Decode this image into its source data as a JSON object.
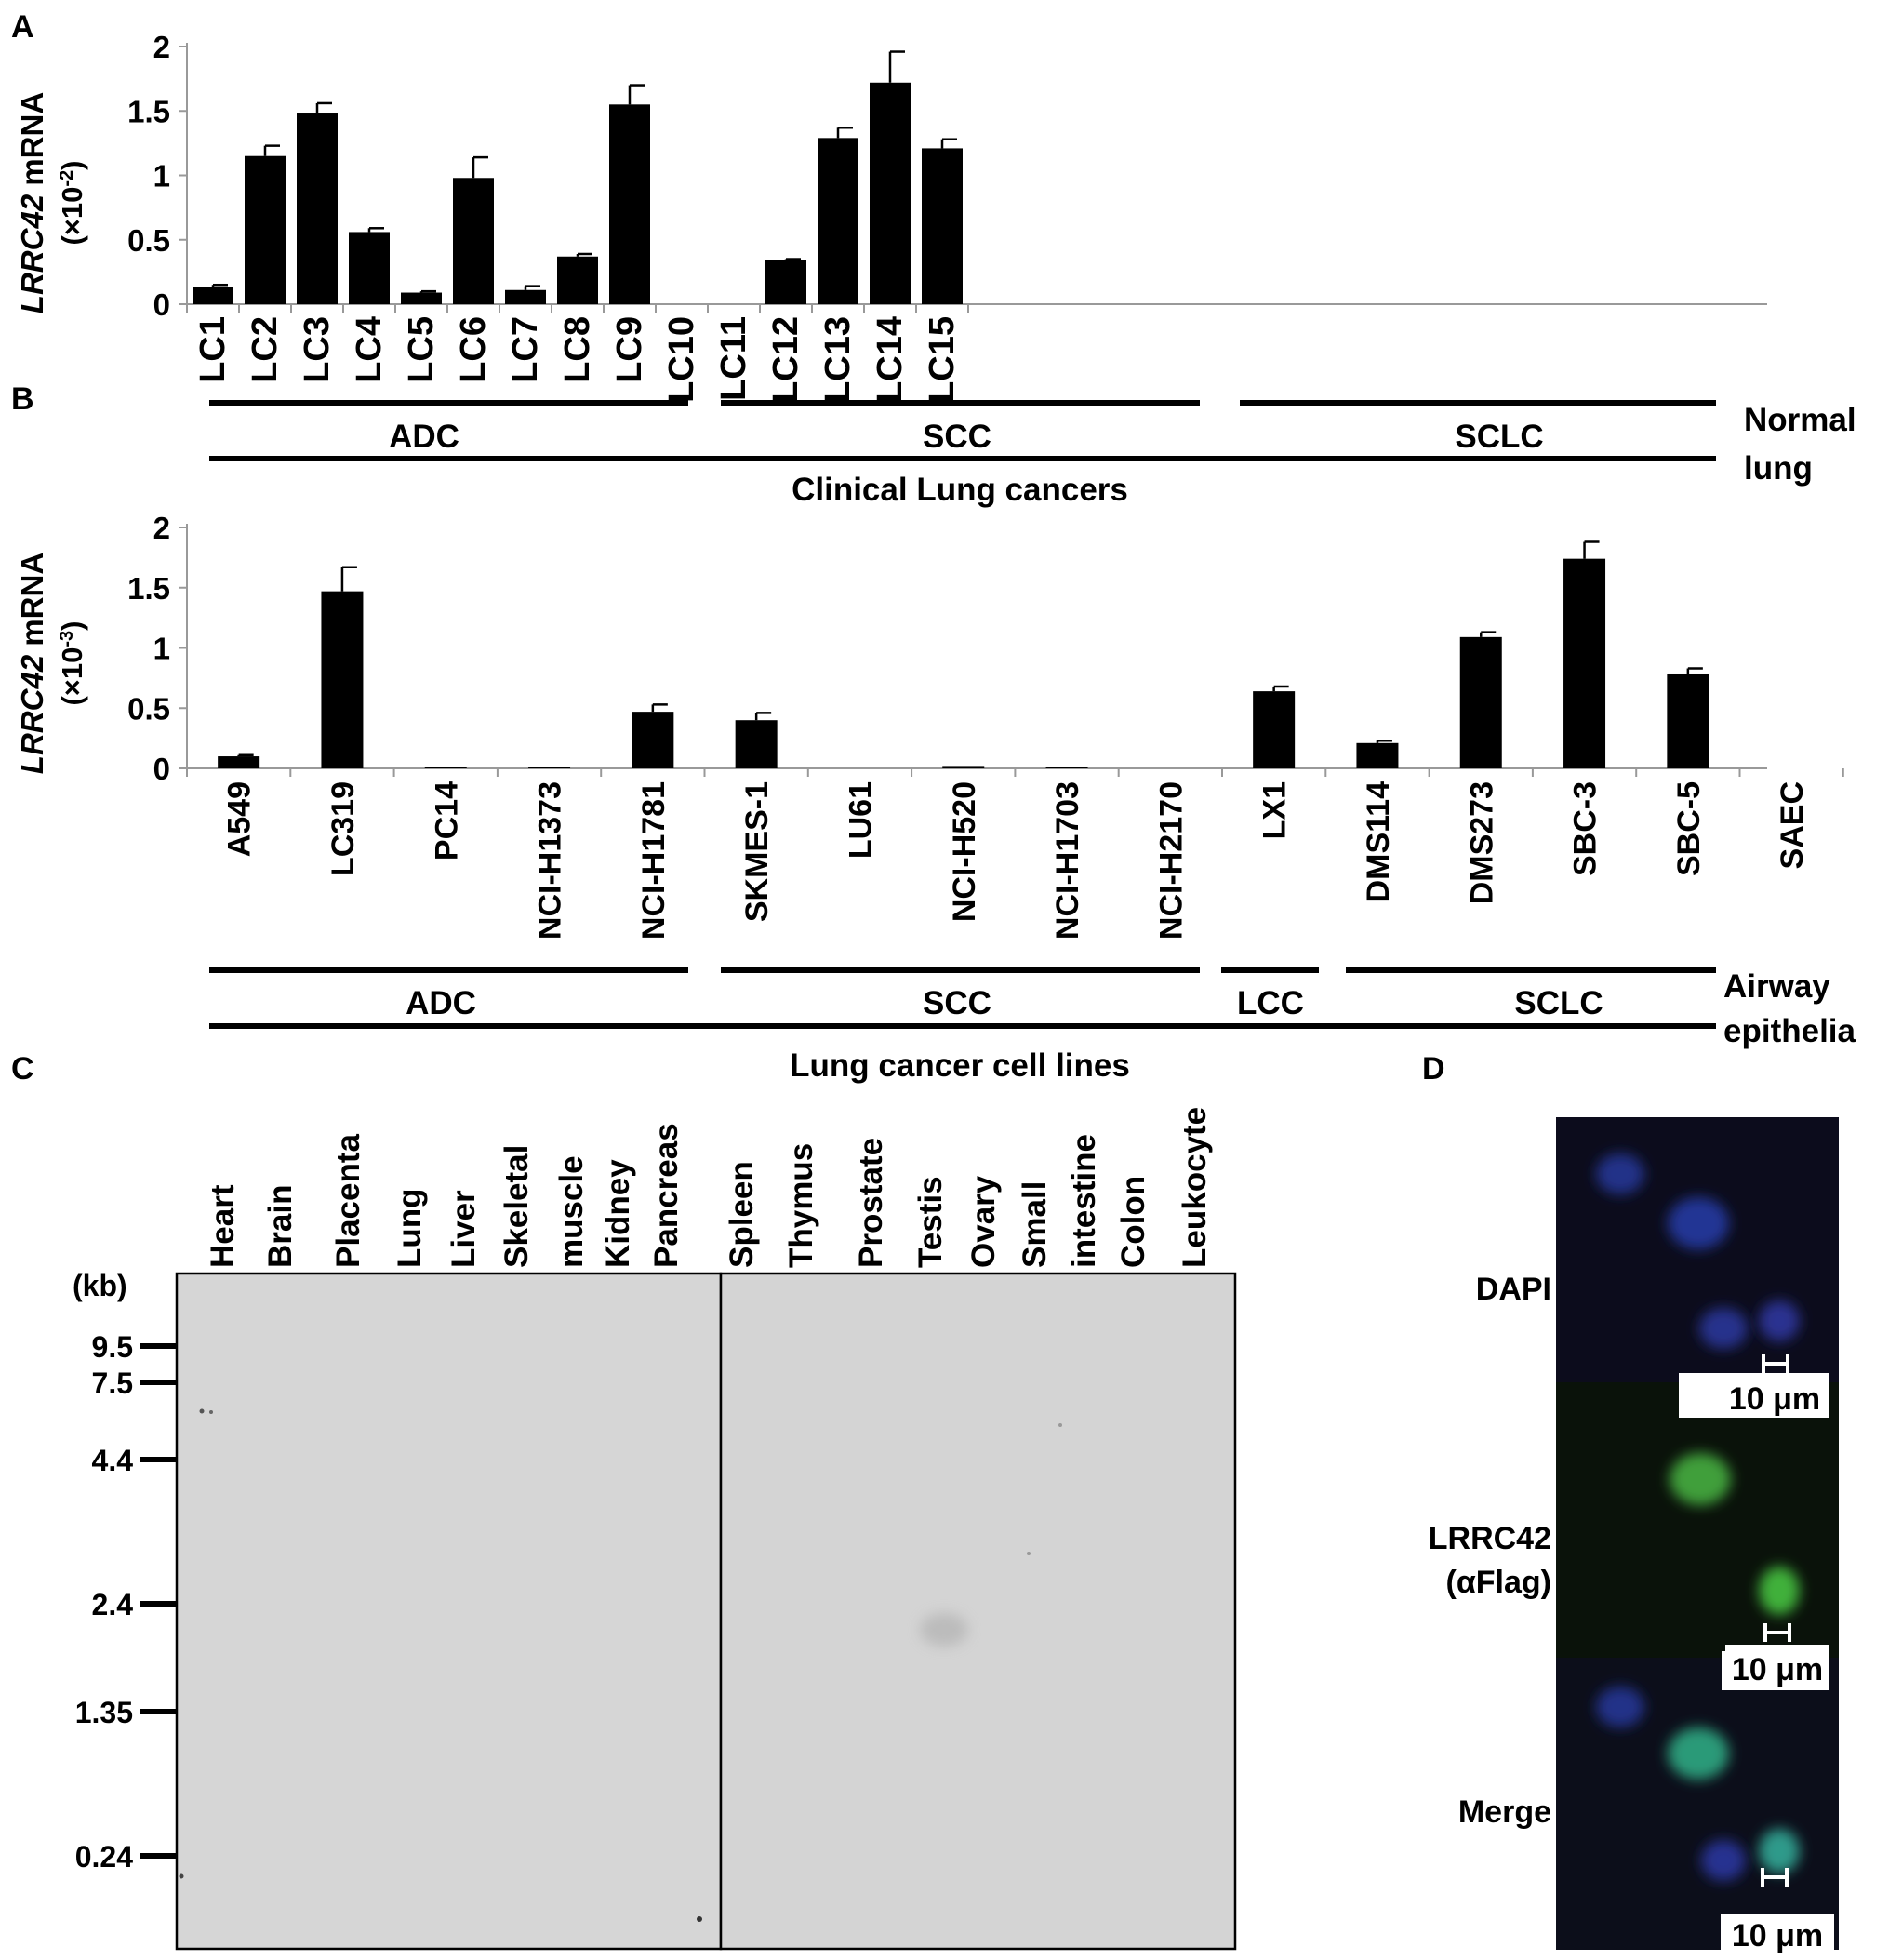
{
  "panel_a": {
    "letter": "A",
    "ylabel_gene": "LRRC42",
    "ylabel_rest": " mRNA",
    "ylabel_scale_pre": "(×10",
    "ylabel_scale_exp": "-2",
    "ylabel_scale_post": ")",
    "groups": [
      "ADC",
      "SCC",
      "SCLC"
    ],
    "group_caption": "Clinical Lung cancers",
    "normal_label_1": "Normal",
    "normal_label_2": "lung"
  },
  "panel_b": {
    "letter": "B",
    "ylabel_gene": "LRRC42",
    "ylabel_rest": " mRNA",
    "ylabel_scale_pre": "(×10",
    "ylabel_scale_exp": "-3",
    "ylabel_scale_post": ")",
    "groups": [
      "ADC",
      "SCC",
      "LCC",
      "SCLC"
    ],
    "group_caption": "Lung cancer cell lines",
    "normal_label_1": "Airway",
    "normal_label_2": "epithelia"
  },
  "panel_c": {
    "letter": "C",
    "kb_label": "(kb)",
    "markers": [
      "9.5",
      "7.5",
      "4.4",
      "2.4",
      "1.35",
      "0.24"
    ],
    "lanes_left": [
      "Heart",
      "Brain",
      "Placenta",
      "Lung",
      "Liver",
      "Skeletal",
      "muscle",
      "Kidney",
      "Pancreas"
    ],
    "lanes_right": [
      "Spleen",
      "Thymus",
      "Prostate",
      "Testis",
      "Ovary",
      "Small",
      "intestine",
      "Colon",
      "Leukocyte"
    ]
  },
  "panel_d": {
    "letter": "D",
    "rows": [
      "DAPI",
      "LRRC42",
      "(αFlag)",
      "Merge"
    ],
    "scale_bar": "10 μm"
  },
  "chart_data": [
    {
      "type": "bar",
      "panel": "A",
      "categories": [
        "LC1",
        "LC2",
        "LC3",
        "LC4",
        "LC5",
        "LC6",
        "LC7",
        "LC8",
        "LC9",
        "LC10",
        "LC11",
        "LC12",
        "LC13",
        "LC14",
        "LC15"
      ],
      "values": [
        0.13,
        1.15,
        1.48,
        0.56,
        0.09,
        0.98,
        0.11,
        0.37,
        1.55,
        0,
        0,
        0.34,
        1.29,
        1.72,
        1.21
      ],
      "errors": [
        0.02,
        0.08,
        0.08,
        0.03,
        0.01,
        0.16,
        0.03,
        0.02,
        0.15,
        0,
        0,
        0.01,
        0.08,
        0.24,
        0.07
      ],
      "yticks": [
        "0",
        "0.5",
        "1",
        "1.5",
        "2"
      ],
      "ylim": [
        0,
        2
      ],
      "ylabel": "LRRC42 mRNA (×10-2)",
      "grid": false
    },
    {
      "type": "bar",
      "panel": "B",
      "categories": [
        "A549",
        "LC319",
        "PC14",
        "NCI-H1373",
        "NCI-H1781",
        "SKMES-1",
        "LU61",
        "NCI-H520",
        "NCI-H1703",
        "NCI-H2170",
        "LX1",
        "DMS114",
        "DMS273",
        "SBC-3",
        "SBC-5",
        "SAEC"
      ],
      "values": [
        0.1,
        1.47,
        0.005,
        0.005,
        0.47,
        0.4,
        0,
        0.02,
        0.015,
        0,
        0.64,
        0.21,
        1.09,
        1.74,
        0.78,
        0
      ],
      "errors": [
        0.01,
        0.2,
        0,
        0,
        0.06,
        0.06,
        0,
        0,
        0,
        0,
        0.04,
        0.02,
        0.04,
        0.14,
        0.05,
        0
      ],
      "yticks": [
        "0",
        "0.5",
        "1",
        "1.5",
        "2"
      ],
      "ylim": [
        0,
        2
      ],
      "ylabel": "LRRC42 mRNA (×10-3)",
      "grid": false
    }
  ]
}
